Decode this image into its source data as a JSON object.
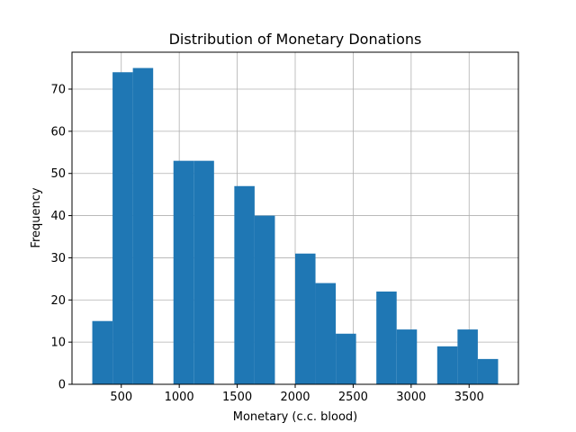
{
  "chart_data": {
    "type": "bar",
    "title": "Distribution of Monetary Donations",
    "xlabel": "Monetary (c.c. blood)",
    "ylabel": "Frequency",
    "grid": true,
    "xlim": [
      75,
      3925
    ],
    "ylim": [
      0,
      78.75
    ],
    "xticks": [
      500,
      1000,
      1500,
      2000,
      2500,
      3000,
      3500
    ],
    "yticks": [
      0,
      10,
      20,
      30,
      40,
      50,
      60,
      70
    ],
    "bar_color": "#1f77b4",
    "bins": [
      {
        "start": 250,
        "end": 425,
        "count": 15
      },
      {
        "start": 425,
        "end": 600,
        "count": 74
      },
      {
        "start": 600,
        "end": 775,
        "count": 75
      },
      {
        "start": 775,
        "end": 950,
        "count": 0
      },
      {
        "start": 950,
        "end": 1125,
        "count": 53
      },
      {
        "start": 1125,
        "end": 1300,
        "count": 53
      },
      {
        "start": 1300,
        "end": 1475,
        "count": 0
      },
      {
        "start": 1475,
        "end": 1650,
        "count": 47
      },
      {
        "start": 1650,
        "end": 1825,
        "count": 40
      },
      {
        "start": 1825,
        "end": 2000,
        "count": 0
      },
      {
        "start": 2000,
        "end": 2175,
        "count": 31
      },
      {
        "start": 2175,
        "end": 2350,
        "count": 24
      },
      {
        "start": 2350,
        "end": 2525,
        "count": 12
      },
      {
        "start": 2525,
        "end": 2700,
        "count": 0
      },
      {
        "start": 2700,
        "end": 2875,
        "count": 22
      },
      {
        "start": 2875,
        "end": 3050,
        "count": 13
      },
      {
        "start": 3050,
        "end": 3225,
        "count": 0
      },
      {
        "start": 3225,
        "end": 3400,
        "count": 9
      },
      {
        "start": 3400,
        "end": 3575,
        "count": 13
      },
      {
        "start": 3575,
        "end": 3750,
        "count": 6
      }
    ]
  }
}
